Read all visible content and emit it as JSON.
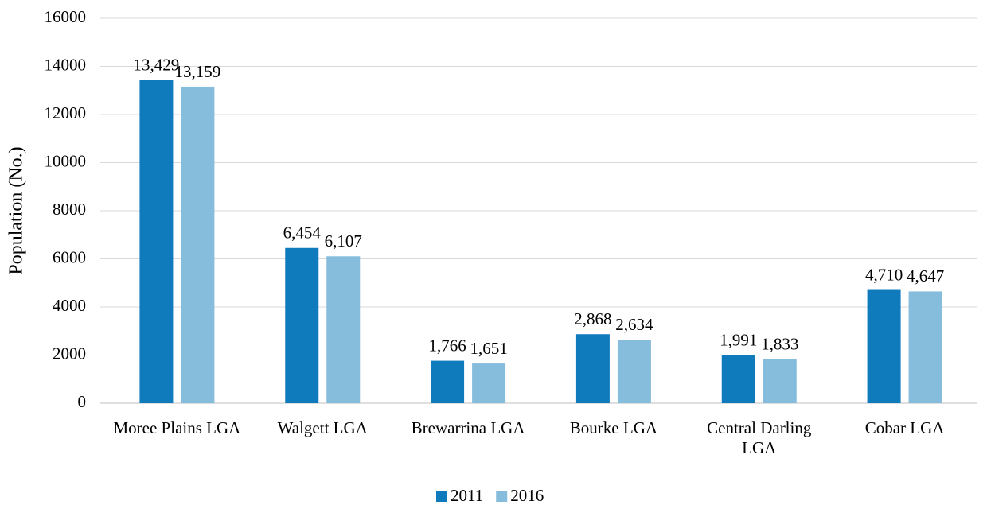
{
  "chart_data": {
    "type": "bar",
    "y_label": "Population (No.)",
    "categories": [
      "Moree Plains LGA",
      "Walgett LGA",
      "Brewarrina LGA",
      "Bourke LGA",
      "Central Darling LGA",
      "Cobar LGA"
    ],
    "series": [
      {
        "name": "2011",
        "color": "#0f7bbd",
        "values": [
          13429,
          6454,
          1766,
          2868,
          1991,
          4710
        ],
        "value_labels": [
          "13,429",
          "6,454",
          "1,766",
          "2,868",
          "1,991",
          "4,710"
        ]
      },
      {
        "name": "2016",
        "color": "#86bcdc",
        "values": [
          13159,
          6107,
          1651,
          2634,
          1833,
          4647
        ],
        "value_labels": [
          "13,159",
          "6,107",
          "1,651",
          "2,634",
          "1,833",
          "4,647"
        ]
      }
    ],
    "ylim": [
      0,
      16000
    ],
    "yticks": [
      0,
      2000,
      4000,
      6000,
      8000,
      10000,
      12000,
      14000,
      16000
    ],
    "grid": true,
    "legend": "bottom"
  }
}
